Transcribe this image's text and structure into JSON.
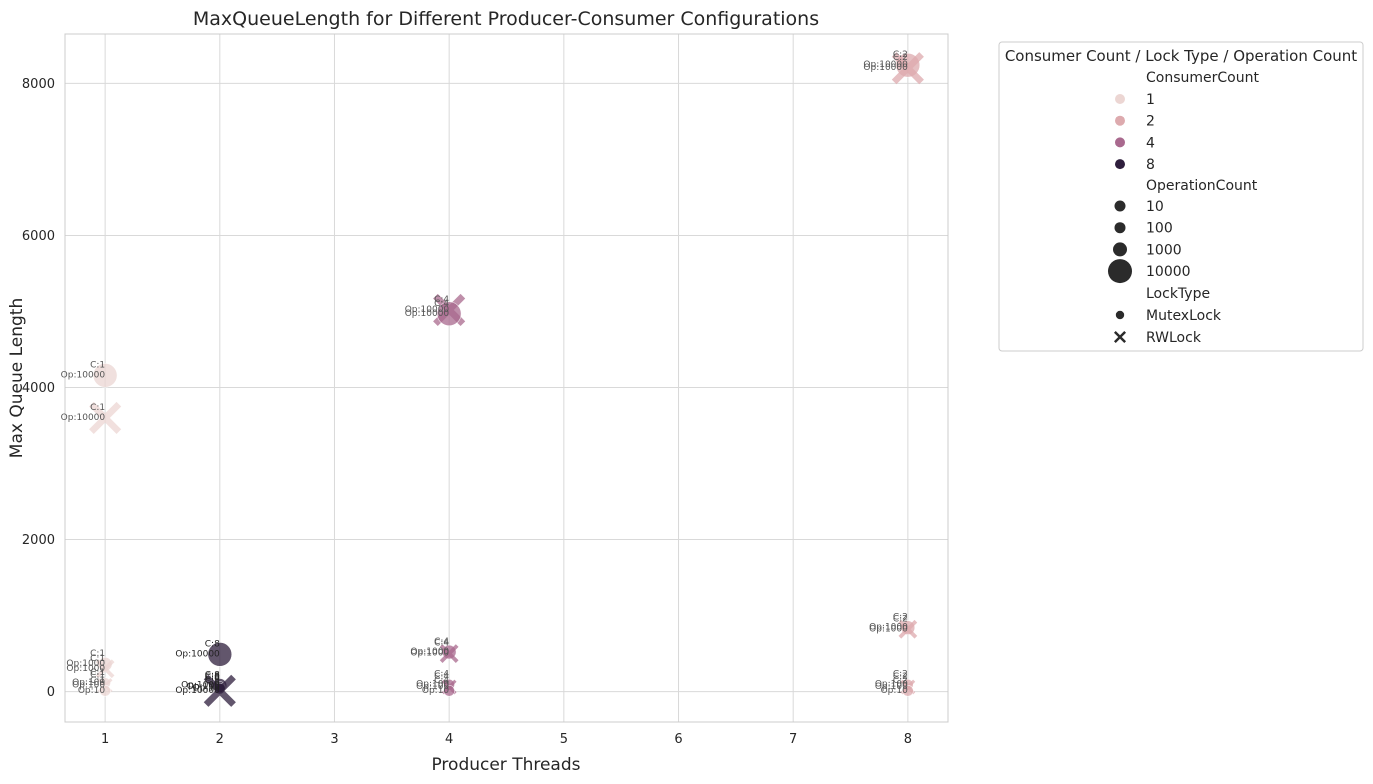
{
  "chart_data": {
    "type": "scatter",
    "title": "MaxQueueLength for Different Producer-Consumer Configurations",
    "xlabel": "Producer Threads",
    "ylabel": "Max Queue Length",
    "xticks": [
      1,
      2,
      3,
      4,
      5,
      6,
      7,
      8
    ],
    "yticks": [
      0,
      2000,
      4000,
      6000,
      8000
    ],
    "xlim": [
      0.65,
      8.35
    ],
    "ylim": [
      -400,
      8650
    ],
    "grid": true,
    "legend": {
      "placement": "outside-right",
      "title": "Consumer Count / Lock Type / Operation Count",
      "hue_title": "ConsumerCount",
      "hue_entries": [
        {
          "label": "1",
          "color": "#ecd6d3"
        },
        {
          "label": "2",
          "color": "#ddaaae"
        },
        {
          "label": "4",
          "color": "#a9698e"
        },
        {
          "label": "8",
          "color": "#2e1e3c"
        }
      ],
      "size_title": "OperationCount",
      "size_entries": [
        "10",
        "100",
        "1000",
        "10000"
      ],
      "style_title": "LockType",
      "style_entries": [
        {
          "label": "MutexLock",
          "marker": "circle"
        },
        {
          "label": "RWLock",
          "marker": "x"
        }
      ]
    },
    "points": [
      {
        "x": 8,
        "y": 8240,
        "consumers": 2,
        "ops": 10000,
        "lock": "MutexLock",
        "labels": [
          "C:2",
          "Op:10000"
        ]
      },
      {
        "x": 8,
        "y": 8200,
        "consumers": 2,
        "ops": 10000,
        "lock": "RWLock",
        "labels": [
          "C:2",
          "Op:10000"
        ]
      },
      {
        "x": 4,
        "y": 5020,
        "consumers": 4,
        "ops": 10000,
        "lock": "RWLock",
        "labels": [
          "C:4",
          "Op:10000"
        ]
      },
      {
        "x": 4,
        "y": 4970,
        "consumers": 4,
        "ops": 10000,
        "lock": "MutexLock",
        "labels": [
          "C:4",
          "Op:10000"
        ]
      },
      {
        "x": 1,
        "y": 4160,
        "consumers": 1,
        "ops": 10000,
        "lock": "MutexLock",
        "labels": [
          "C:1",
          "Op:10000"
        ]
      },
      {
        "x": 1,
        "y": 3600,
        "consumers": 1,
        "ops": 10000,
        "lock": "RWLock",
        "labels": [
          "C:1",
          "Op:10000"
        ]
      },
      {
        "x": 8,
        "y": 840,
        "consumers": 2,
        "ops": 1000,
        "lock": "MutexLock",
        "labels": [
          "C:2",
          "Op:1000"
        ]
      },
      {
        "x": 8,
        "y": 820,
        "consumers": 2,
        "ops": 1000,
        "lock": "RWLock",
        "labels": [
          "C:2",
          "Op:1000"
        ]
      },
      {
        "x": 4,
        "y": 520,
        "consumers": 4,
        "ops": 1000,
        "lock": "MutexLock",
        "labels": [
          "C:4",
          "Op:1000"
        ]
      },
      {
        "x": 4,
        "y": 500,
        "consumers": 4,
        "ops": 1000,
        "lock": "RWLock",
        "labels": [
          "C:4",
          "Op:1000"
        ]
      },
      {
        "x": 2,
        "y": 490,
        "consumers": 8,
        "ops": 10000,
        "lock": "MutexLock",
        "labels": [
          "C:8",
          "Op:10000"
        ]
      },
      {
        "x": 1,
        "y": 360,
        "consumers": 1,
        "ops": 1000,
        "lock": "MutexLock",
        "labels": [
          "C:1",
          "Op:1000"
        ]
      },
      {
        "x": 1,
        "y": 300,
        "consumers": 1,
        "ops": 1000,
        "lock": "RWLock",
        "labels": [
          "C:1",
          "Op:1000"
        ]
      },
      {
        "x": 8,
        "y": 90,
        "consumers": 2,
        "ops": 100,
        "lock": "MutexLock",
        "labels": [
          "C:2",
          "Op:100"
        ]
      },
      {
        "x": 8,
        "y": 60,
        "consumers": 2,
        "ops": 100,
        "lock": "RWLock",
        "labels": [
          "C:2",
          "Op:100"
        ]
      },
      {
        "x": 8,
        "y": 10,
        "consumers": 2,
        "ops": 10,
        "lock": "MutexLock",
        "labels": [
          "C:2",
          "Op:10"
        ]
      },
      {
        "x": 4,
        "y": 90,
        "consumers": 4,
        "ops": 100,
        "lock": "MutexLock",
        "labels": [
          "C:4",
          "Op:100"
        ]
      },
      {
        "x": 4,
        "y": 60,
        "consumers": 4,
        "ops": 100,
        "lock": "RWLock",
        "labels": [
          "C:4",
          "Op:100"
        ]
      },
      {
        "x": 4,
        "y": 10,
        "consumers": 4,
        "ops": 10,
        "lock": "MutexLock",
        "labels": [
          "C:4",
          "Op:10"
        ]
      },
      {
        "x": 1,
        "y": 110,
        "consumers": 1,
        "ops": 100,
        "lock": "MutexLock",
        "labels": [
          "C:1",
          "Op:100"
        ]
      },
      {
        "x": 1,
        "y": 80,
        "consumers": 1,
        "ops": 100,
        "lock": "RWLock",
        "labels": [
          "C:1",
          "Op:100"
        ]
      },
      {
        "x": 1,
        "y": 10,
        "consumers": 1,
        "ops": 10,
        "lock": "MutexLock",
        "labels": [
          "C:1",
          "Op:10"
        ]
      },
      {
        "x": 2,
        "y": 80,
        "consumers": 8,
        "ops": 1000,
        "lock": "MutexLock",
        "labels": [
          "C:8",
          "Op:1000"
        ]
      },
      {
        "x": 2,
        "y": 60,
        "consumers": 8,
        "ops": 100,
        "lock": "MutexLock",
        "labels": [
          "C:8",
          "Op:100"
        ]
      },
      {
        "x": 2,
        "y": 40,
        "consumers": 8,
        "ops": 10,
        "lock": "MutexLock",
        "labels": [
          "C:8",
          "Op:10"
        ]
      },
      {
        "x": 2,
        "y": 10,
        "consumers": 8,
        "ops": 10000,
        "lock": "RWLock",
        "labels": [
          "C:8",
          "Op:10000"
        ]
      }
    ]
  }
}
